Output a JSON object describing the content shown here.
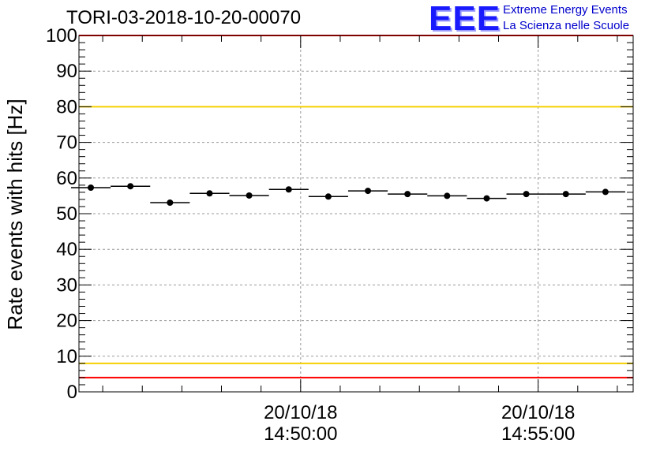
{
  "header": {
    "title": "TORI-03-2018-10-20-00070",
    "logo_text": "EEE",
    "logo_line1": "Extreme Energy Events",
    "logo_line2": "La Scienza nelle Scuole"
  },
  "colors": {
    "red_limit": "#ff0000",
    "yellow_limit": "#f5d000",
    "grid": "#999999",
    "points": "#000000",
    "logo": "#1a1aff"
  },
  "chart_data": {
    "type": "scatter",
    "title": "TORI-03-2018-10-20-00070",
    "xlabel": "",
    "ylabel": "Rate events with hits [Hz]",
    "ylim": [
      0,
      100
    ],
    "yticks": [
      0,
      10,
      20,
      30,
      40,
      50,
      60,
      70,
      80,
      90,
      100
    ],
    "xlim_seconds": [
      -280,
      420
    ],
    "xticks": [
      {
        "t": 0,
        "label_date": "20/10/18",
        "label_time": "14:50:00"
      },
      {
        "t": 300,
        "label_date": "20/10/18",
        "label_time": "14:55:00"
      }
    ],
    "grid": true,
    "bin_width_seconds": 50,
    "series": [
      {
        "name": "rate",
        "x_seconds": [
          -265,
          -215,
          -165,
          -115,
          -65,
          -15,
          35,
          85,
          135,
          185,
          235,
          285,
          335,
          385
        ],
        "y": [
          57.3,
          57.7,
          53.1,
          55.7,
          55.1,
          56.8,
          54.8,
          56.4,
          55.5,
          55.0,
          54.3,
          55.5,
          55.5,
          56.1
        ],
        "y_errors": [
          0.8,
          0.8,
          0.8,
          0.8,
          0.8,
          0.8,
          0.8,
          0.8,
          0.8,
          0.8,
          0.8,
          0.8,
          0.8,
          0.8
        ]
      }
    ],
    "reference_lines": [
      {
        "name": "upper-red-limit",
        "y": 100,
        "color": "#ff0000"
      },
      {
        "name": "upper-yellow-limit",
        "y": 80,
        "color": "#f5d000"
      },
      {
        "name": "lower-yellow-limit",
        "y": 8,
        "color": "#f5d000"
      },
      {
        "name": "lower-red-limit",
        "y": 4,
        "color": "#ff0000"
      }
    ]
  }
}
